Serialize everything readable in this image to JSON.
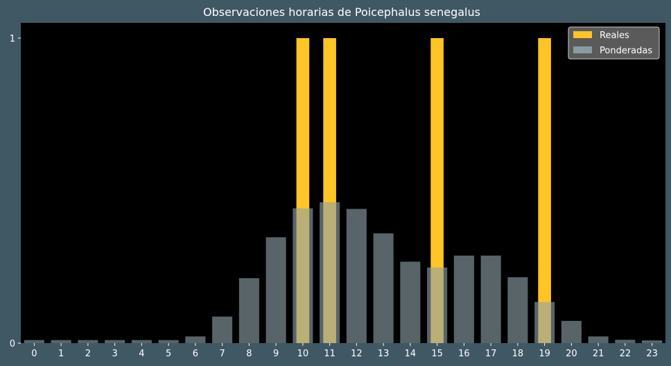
{
  "chart_data": {
    "type": "bar",
    "title": "Observaciones horarias de Poicephalus senegalus",
    "categories": [
      "0",
      "1",
      "2",
      "3",
      "4",
      "5",
      "6",
      "7",
      "8",
      "9",
      "10",
      "11",
      "12",
      "13",
      "14",
      "15",
      "16",
      "17",
      "18",
      "19",
      "20",
      "21",
      "22",
      "23"
    ],
    "series": [
      {
        "name": "Reales",
        "color": "#FFC425",
        "values": [
          0,
          0,
          0,
          0,
          0,
          0,
          0,
          0,
          0,
          0,
          1,
          1,
          0,
          0,
          0,
          1,
          0,
          0,
          0,
          1,
          0,
          0,
          0,
          0
        ]
      },
      {
        "name": "Ponderadas",
        "color": "#8FA2A9",
        "values": [
          0.01,
          0.01,
          0.01,
          0.01,
          0.01,
          0.01,
          0.022,
          0.087,
          0.213,
          0.347,
          0.442,
          0.462,
          0.44,
          0.36,
          0.267,
          0.248,
          0.287,
          0.287,
          0.216,
          0.135,
          0.073,
          0.022,
          0.011,
          0.009
        ]
      }
    ],
    "yticks": [
      0,
      1
    ],
    "ylim": [
      0,
      1.05
    ],
    "legend_position": "top-right",
    "background": "#405764",
    "plot_background": "#000000"
  }
}
